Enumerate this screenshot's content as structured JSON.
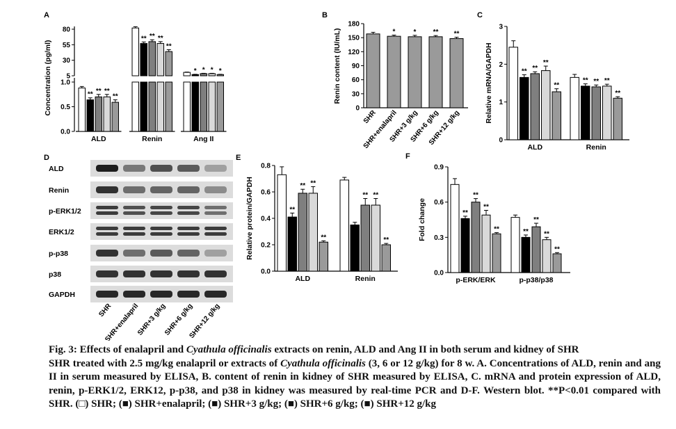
{
  "colors": {
    "SHR": "#ffffff",
    "SHR+enalapril": "#000000",
    "SHR+3 g/kg": "#7f7f7f",
    "SHR+6 g/kg": "#d9d9d9",
    "SHR+12 g/kg": "#9a9a9a"
  },
  "groups": [
    "SHR",
    "SHR+enalapril",
    "SHR+3 g/kg",
    "SHR+6 g/kg",
    "SHR+12 g/kg"
  ],
  "chart_data": [
    {
      "panel": "A",
      "type": "bar",
      "ylabel": "Concentration (pg/ml)",
      "categories": [
        "ALD",
        "Renin",
        "Ang II"
      ],
      "axis_break": true,
      "yticks_lower": [
        "0.0",
        "0.5",
        "1.0"
      ],
      "yticks_upper": [
        "5",
        "30",
        "55",
        "80"
      ],
      "series": [
        {
          "name": "SHR",
          "values": [
            0.88,
            82,
            10.5
          ]
        },
        {
          "name": "SHR+enalapril",
          "values": [
            0.64,
            57,
            7
          ]
        },
        {
          "name": "SHR+3 g/kg",
          "values": [
            0.7,
            60,
            8.5
          ]
        },
        {
          "name": "SHR+6 g/kg",
          "values": [
            0.7,
            57,
            8.5
          ]
        },
        {
          "name": "SHR+12 g/kg",
          "values": [
            0.59,
            44,
            7
          ]
        }
      ],
      "errors": [
        [
          0.03,
          2,
          0.5
        ],
        [
          0.04,
          2.5,
          0.4
        ],
        [
          0.05,
          3,
          0.5
        ],
        [
          0.05,
          3,
          0.5
        ],
        [
          0.05,
          3,
          0.4
        ]
      ],
      "sig": [
        [
          "",
          "",
          ""
        ],
        [
          "**",
          "**",
          "*"
        ],
        [
          "**",
          "**",
          "*"
        ],
        [
          "**",
          "**",
          "*"
        ],
        [
          "**",
          "**",
          "*"
        ]
      ]
    },
    {
      "panel": "B",
      "type": "bar",
      "ylabel": "Renin content (IU/mL)",
      "ylim": [
        0,
        180
      ],
      "yticks": [
        "0",
        "30",
        "60",
        "90",
        "120",
        "150",
        "180"
      ],
      "categories": [
        "SHR",
        "SHR+enalapril",
        "SHR+3 g/kg",
        "SHR+6 g/kg",
        "SHR+12 g/kg"
      ],
      "values": [
        158,
        153,
        152,
        152,
        148
      ],
      "errors": [
        3.5,
        2.5,
        3,
        2.5,
        3
      ],
      "sig": [
        "",
        "*",
        "*",
        "**",
        "**"
      ]
    },
    {
      "panel": "C",
      "type": "bar",
      "ylabel": "Relative mRNA/GAPDH",
      "ylim": [
        0,
        3
      ],
      "yticks": [
        "0",
        "1",
        "2",
        "3"
      ],
      "categories": [
        "ALD",
        "Renin"
      ],
      "series": [
        {
          "name": "SHR",
          "values": [
            2.45,
            1.65
          ]
        },
        {
          "name": "SHR+enalapril",
          "values": [
            1.65,
            1.42
          ]
        },
        {
          "name": "SHR+3 g/kg",
          "values": [
            1.75,
            1.4
          ]
        },
        {
          "name": "SHR+6 g/kg",
          "values": [
            1.83,
            1.42
          ]
        },
        {
          "name": "SHR+12 g/kg",
          "values": [
            1.27,
            1.1
          ]
        }
      ],
      "errors": [
        [
          0.17,
          0.08
        ],
        [
          0.07,
          0.06
        ],
        [
          0.05,
          0.05
        ],
        [
          0.12,
          0.05
        ],
        [
          0.08,
          0.04
        ]
      ],
      "sig": [
        [
          "",
          ""
        ],
        [
          "**",
          "**"
        ],
        [
          "**",
          "**"
        ],
        [
          "**",
          "**"
        ],
        [
          "**",
          "**"
        ]
      ]
    },
    {
      "panel": "E",
      "type": "bar",
      "ylabel": "Relative protein/GAPDH",
      "ylim": [
        0,
        0.8
      ],
      "yticks": [
        "0.0",
        "0.2",
        "0.4",
        "0.6",
        "0.8"
      ],
      "categories": [
        "ALD",
        "Renin"
      ],
      "series": [
        {
          "name": "SHR",
          "values": [
            0.73,
            0.69
          ]
        },
        {
          "name": "SHR+enalapril",
          "values": [
            0.41,
            0.35
          ]
        },
        {
          "name": "SHR+3 g/kg",
          "values": [
            0.59,
            0.5
          ]
        },
        {
          "name": "SHR+6 g/kg",
          "values": [
            0.59,
            0.5
          ]
        },
        {
          "name": "SHR+12 g/kg",
          "values": [
            0.22,
            0.2
          ]
        }
      ],
      "errors": [
        [
          0.06,
          0.02
        ],
        [
          0.03,
          0.02
        ],
        [
          0.03,
          0.05
        ],
        [
          0.05,
          0.05
        ],
        [
          0.01,
          0.01
        ]
      ],
      "sig": [
        [
          "",
          ""
        ],
        [
          "**",
          ""
        ],
        [
          "**",
          "**"
        ],
        [
          "**",
          "**"
        ],
        [
          "**",
          "**"
        ]
      ]
    },
    {
      "panel": "F",
      "type": "bar",
      "ylabel": "Fold change",
      "ylim": [
        0,
        0.9
      ],
      "yticks": [
        "0.0",
        "0.3",
        "0.6",
        "0.9"
      ],
      "categories": [
        "p-ERK/ERK",
        "p-p38/p38"
      ],
      "series": [
        {
          "name": "SHR",
          "values": [
            0.75,
            0.47
          ]
        },
        {
          "name": "SHR+enalapril",
          "values": [
            0.46,
            0.3
          ]
        },
        {
          "name": "SHR+3 g/kg",
          "values": [
            0.6,
            0.39
          ]
        },
        {
          "name": "SHR+6 g/kg",
          "values": [
            0.49,
            0.28
          ]
        },
        {
          "name": "SHR+12 g/kg",
          "values": [
            0.33,
            0.16
          ]
        }
      ],
      "errors": [
        [
          0.05,
          0.02
        ],
        [
          0.02,
          0.02
        ],
        [
          0.03,
          0.03
        ],
        [
          0.04,
          0.02
        ],
        [
          0.01,
          0.01
        ]
      ],
      "sig": [
        [
          "",
          ""
        ],
        [
          "**",
          "**"
        ],
        [
          "**",
          "**"
        ],
        [
          "**",
          "**"
        ],
        [
          "**",
          "**"
        ]
      ]
    }
  ],
  "panel_letters": [
    "A",
    "B",
    "C",
    "D",
    "E",
    "F"
  ],
  "blot": {
    "rows": [
      "ALD",
      "Renin",
      "p-ERK1/2",
      "ERK1/2",
      "p-p38",
      "p38",
      "GAPDH"
    ],
    "intensity": [
      [
        1,
        0.55,
        0.75,
        0.7,
        0.35
      ],
      [
        0.9,
        0.6,
        0.65,
        0.65,
        0.45
      ],
      [
        0.85,
        0.75,
        0.8,
        0.8,
        0.6
      ],
      [
        0.85,
        0.85,
        0.85,
        0.85,
        0.85
      ],
      [
        0.9,
        0.6,
        0.7,
        0.65,
        0.35
      ],
      [
        0.9,
        0.9,
        0.9,
        0.9,
        0.9
      ],
      [
        0.95,
        0.95,
        0.95,
        0.95,
        0.95
      ]
    ],
    "lanes": [
      "SHR",
      "SHR+enalapril",
      "SHR+3 g/kg",
      "SHR+6 g/kg",
      "SHR+12 g/kg"
    ]
  },
  "caption": {
    "line1_a": "Fig. 3: Effects of enalapril and ",
    "line1_it": "Cyathula officinalis",
    "line1_b": " extracts on renin, ALD and Ang II in both serum and kidney of SHR",
    "body_a": "SHR treated with 2.5 mg/kg enalapril or extracts of ",
    "body_it": "Cyathula officinalis",
    "body_b": " (3, 6 or 12 g/kg) for 8 w. A. Concentrations of ALD, renin and ang II in serum measured by ELISA, B. content of renin in kidney of SHR measured by ELISA,  C. mRNA and protein expression of ALD, renin, p-ERK1/2, ERK12, p-p38, and p38 in kidney was measured by real-time PCR and D-F. Western blot. **P<0.01 compared with SHR. (□) SHR; (■) SHR+enalapril; (■) SHR+3 g/kg; (■) SHR+6 g/kg; (■) SHR+12 g/kg"
  }
}
